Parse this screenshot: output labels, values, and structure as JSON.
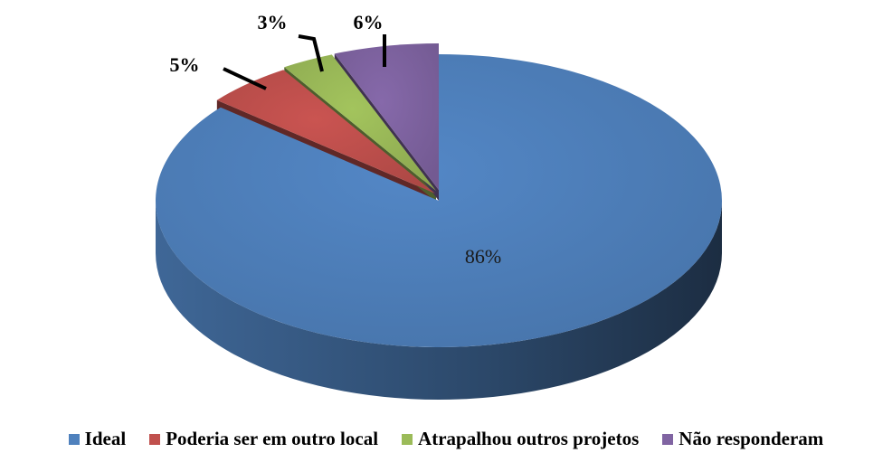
{
  "chart_data": {
    "type": "pie",
    "title": "",
    "categories": [
      "Ideal",
      "Poderia ser em outro local",
      "Atrapalhou outros projetos",
      "Não responderam"
    ],
    "values": [
      86,
      5,
      3,
      6
    ],
    "labels": [
      "86%",
      "5%",
      "3%",
      "6%"
    ],
    "colors": [
      "#4f81bd",
      "#c0504d",
      "#9bbb59",
      "#8064a2"
    ],
    "style": "3d-exploded",
    "legend_position": "bottom"
  }
}
